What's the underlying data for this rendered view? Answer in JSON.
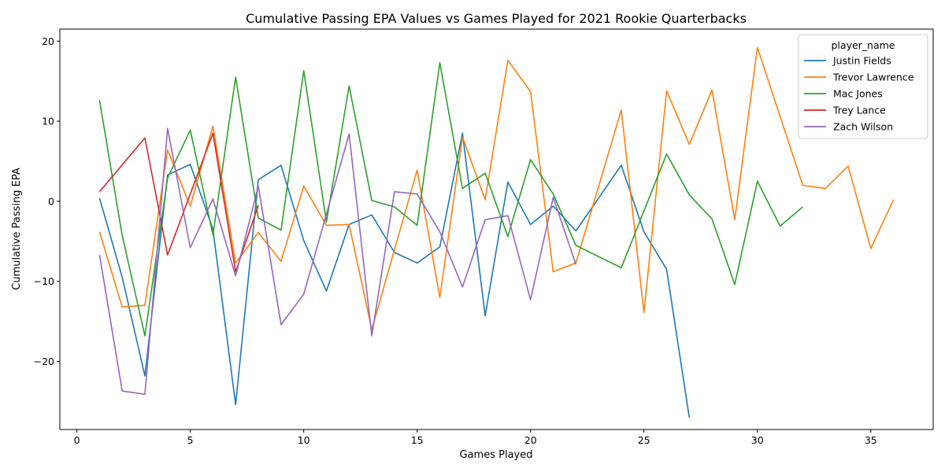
{
  "chart_data": {
    "type": "line",
    "title": "Cumulative Passing EPA Values vs Games Played for 2021 Rookie Quarterbacks",
    "xlabel": "Games Played",
    "ylabel": "Cumulative Passing EPA",
    "xlim": [
      -0.75,
      37.75
    ],
    "ylim": [
      -28.5,
      21.5
    ],
    "xticks": [
      0,
      5,
      10,
      15,
      20,
      25,
      30,
      35
    ],
    "yticks": [
      -20,
      -10,
      0,
      10,
      20
    ],
    "yticklabels": [
      "−20",
      "−10",
      "0",
      "10",
      "20"
    ],
    "legend": {
      "title": "player_name",
      "position": "top-right"
    },
    "series": [
      {
        "name": "Justin Fields",
        "color": "#1f77b4",
        "x": [
          1,
          2,
          3,
          4,
          5,
          6,
          7,
          8,
          9,
          10,
          11,
          12,
          13,
          14,
          15,
          16,
          17,
          18,
          19,
          20,
          21,
          22,
          24,
          25,
          26,
          27
        ],
        "y": [
          0.4,
          -9.5,
          -21.8,
          3.3,
          4.6,
          -3.5,
          -25.4,
          2.7,
          4.5,
          -4.9,
          -11.2,
          -2.9,
          -1.7,
          -6.4,
          -7.7,
          -5.7,
          8.5,
          -14.3,
          2.4,
          -2.9,
          -0.6,
          -3.7,
          4.5,
          -3.8,
          -8.5,
          -27.0
        ]
      },
      {
        "name": "Trevor Lawrence",
        "color": "#ff7f0e",
        "x": [
          1,
          2,
          3,
          4,
          5,
          6,
          7,
          8,
          9,
          10,
          11,
          12,
          13,
          15,
          16,
          17,
          18,
          19,
          20,
          21,
          22,
          24,
          25,
          26,
          27,
          28,
          29,
          30,
          32,
          33,
          34,
          35,
          36
        ],
        "y": [
          -3.8,
          -13.2,
          -13.0,
          6.4,
          -0.6,
          9.4,
          -7.7,
          -3.9,
          -7.5,
          1.9,
          -3.0,
          -2.9,
          -16.0,
          3.9,
          -12.0,
          8.0,
          0.2,
          17.6,
          13.7,
          -8.8,
          -7.7,
          11.4,
          -13.9,
          13.8,
          7.1,
          13.9,
          -2.3,
          19.2,
          2.0,
          1.6,
          4.4,
          -5.9,
          0.2
        ]
      },
      {
        "name": "Mac Jones",
        "color": "#2ca02c",
        "x": [
          1,
          2,
          3,
          4,
          5,
          6,
          7,
          8,
          9,
          10,
          11,
          12,
          13,
          14,
          15,
          16,
          17,
          18,
          19,
          20,
          21,
          22,
          24,
          26,
          27,
          28,
          29,
          30,
          31,
          32
        ],
        "y": [
          12.6,
          -4.3,
          -16.8,
          2.9,
          8.9,
          -4.2,
          15.5,
          -2.1,
          -3.6,
          16.3,
          -2.6,
          14.4,
          0.1,
          -0.7,
          -3.0,
          17.3,
          1.6,
          3.5,
          -4.4,
          5.2,
          0.9,
          -5.5,
          -8.3,
          5.9,
          0.8,
          -2.2,
          -10.4,
          2.5,
          -3.1,
          -0.7
        ]
      },
      {
        "name": "Trey Lance",
        "color": "#d62728",
        "x": [
          1,
          3,
          4,
          6,
          7,
          8
        ],
        "y": [
          1.2,
          7.9,
          -6.7,
          8.5,
          -8.8,
          -0.5
        ]
      },
      {
        "name": "Zach Wilson",
        "color": "#9467bd",
        "x": [
          1,
          2,
          3,
          4,
          5,
          6,
          7,
          8,
          9,
          10,
          12,
          13,
          14,
          15,
          16,
          17,
          18,
          19,
          20,
          21,
          22
        ],
        "y": [
          -6.7,
          -23.7,
          -24.1,
          9.1,
          -5.8,
          0.3,
          -9.3,
          1.9,
          -15.4,
          -11.6,
          8.4,
          -16.8,
          1.2,
          0.9,
          -3.8,
          -10.7,
          -2.3,
          -1.8,
          -12.3,
          0.5,
          -7.9
        ]
      }
    ]
  }
}
